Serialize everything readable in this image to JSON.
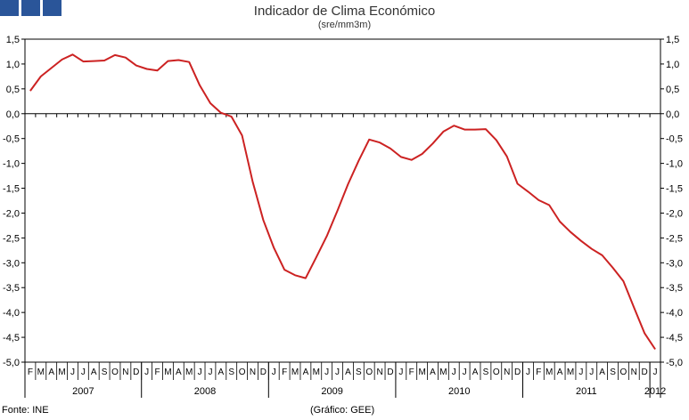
{
  "header": {
    "logo_name": "logo-squares"
  },
  "chart_data": {
    "type": "line",
    "title": "Indicador de Clima Económico",
    "subtitle": "(sre/mm3m)",
    "ylim": [
      -5.0,
      1.5
    ],
    "y_ticks": [
      "1,5",
      "1,0",
      "0,5",
      "0,0",
      "-0,5",
      "-1,0",
      "-1,5",
      "-2,0",
      "-2,5",
      "-3,0",
      "-3,5",
      "-4,0",
      "-4,5",
      "-5,0"
    ],
    "month_labels": [
      "F",
      "M",
      "A",
      "M",
      "J",
      "J",
      "A",
      "S",
      "O",
      "N",
      "D",
      "J",
      "F",
      "M",
      "A",
      "M",
      "J",
      "J",
      "A",
      "S",
      "O",
      "N",
      "D",
      "J",
      "F",
      "M",
      "A",
      "M",
      "J",
      "J",
      "A",
      "S",
      "O",
      "N",
      "D",
      "J",
      "F",
      "M",
      "A",
      "M",
      "J",
      "J",
      "A",
      "S",
      "O",
      "N",
      "D",
      "J",
      "F",
      "M",
      "A",
      "M",
      "J",
      "J",
      "A",
      "S",
      "O",
      "N",
      "D",
      "J"
    ],
    "year_labels": [
      "2007",
      "2008",
      "2009",
      "2010",
      "2011",
      "2012"
    ],
    "x_start": "2007-02",
    "x_end": "2012-01",
    "grid": false,
    "series": [
      {
        "color": "#cc2222",
        "values": [
          0.46,
          0.75,
          0.92,
          1.09,
          1.19,
          1.05,
          1.06,
          1.07,
          1.18,
          1.13,
          0.97,
          0.9,
          0.87,
          1.06,
          1.08,
          1.04,
          0.57,
          0.21,
          0.02,
          -0.06,
          -0.44,
          -1.37,
          -2.14,
          -2.7,
          -3.14,
          -3.25,
          -3.31,
          -2.89,
          -2.46,
          -1.95,
          -1.42,
          -0.95,
          -0.52,
          -0.58,
          -0.7,
          -0.87,
          -0.93,
          -0.81,
          -0.6,
          -0.36,
          -0.24,
          -0.32,
          -0.32,
          -0.31,
          -0.53,
          -0.86,
          -1.41,
          -1.57,
          -1.74,
          -1.84,
          -2.17,
          -2.38,
          -2.56,
          -2.72,
          -2.85,
          -3.1,
          -3.37,
          -3.9,
          -4.42,
          -4.74
        ]
      }
    ]
  },
  "footer": {
    "source": "Fonte: INE",
    "credit": "(Gráfico: GEE)"
  }
}
